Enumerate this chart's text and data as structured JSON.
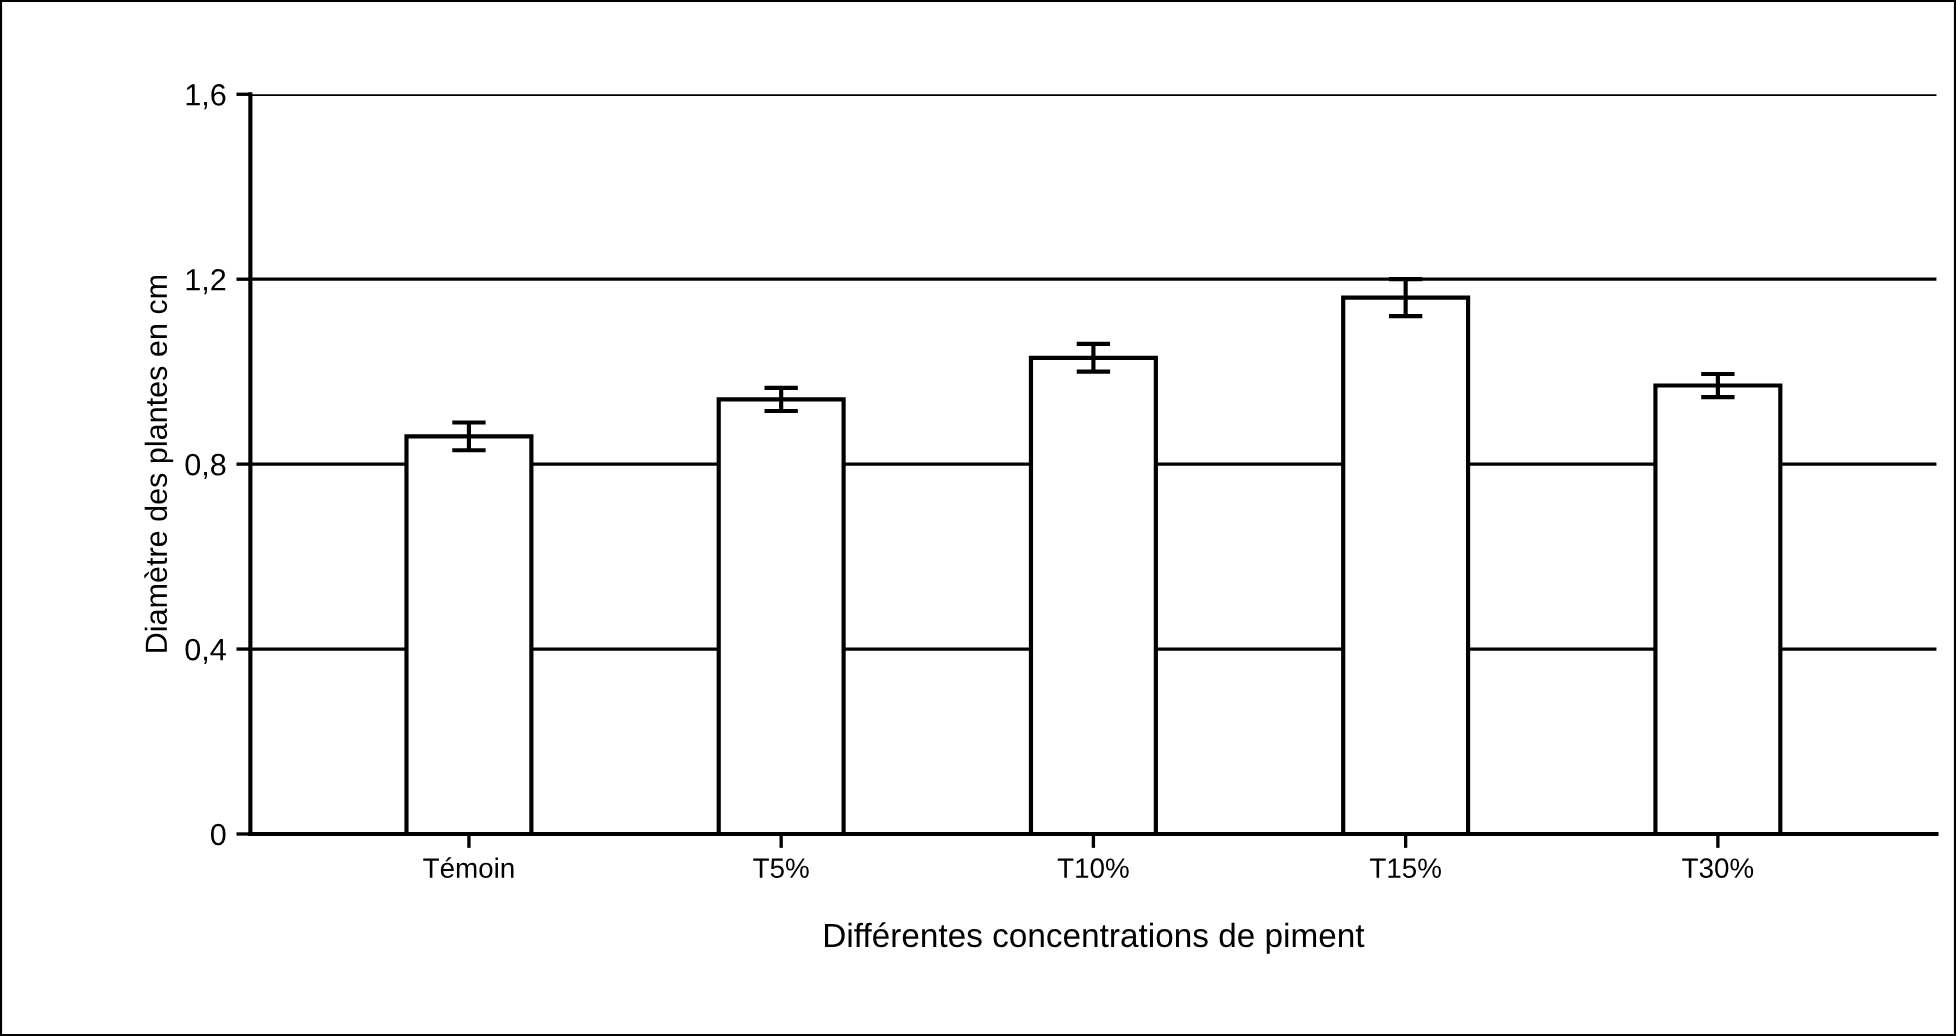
{
  "chart_data": {
    "type": "bar",
    "xlabel": "Différentes concentrations de piment",
    "ylabel": "Diamètre des plantes en cm",
    "categories": [
      "Témoin",
      "T5%",
      "T10%",
      "T15%",
      "T30%"
    ],
    "values": [
      0.86,
      0.94,
      1.03,
      1.16,
      0.97
    ],
    "errors": [
      0.03,
      0.025,
      0.03,
      0.04,
      0.025
    ],
    "color": "#ffffff",
    "ylim": [
      0,
      1.6
    ],
    "yticks": [
      0,
      {
        "value": 0.4,
        "label": "0,4"
      },
      {
        "value": 0.8,
        "label": "0,8"
      },
      {
        "value": 1.2,
        "label": "1,2"
      },
      {
        "value": 1.6,
        "label": "1,6"
      }
    ],
    "grid": "y"
  }
}
